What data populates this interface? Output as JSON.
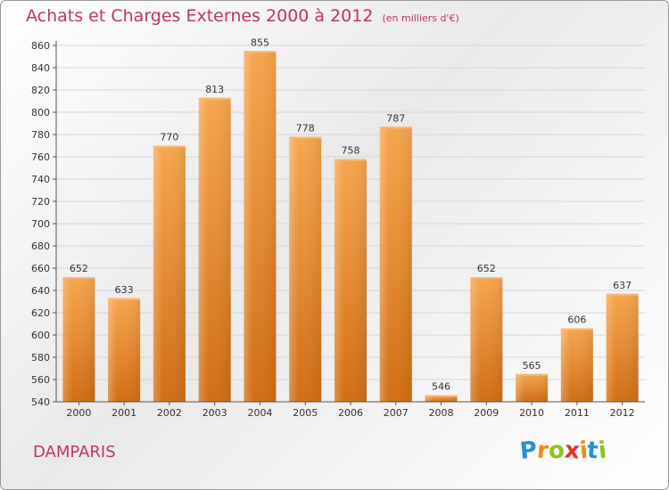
{
  "chart_data": {
    "type": "bar",
    "title": "Achats et Charges Externes 2000 à 2012",
    "subtitle": "(en milliers d'€)",
    "categories": [
      "2000",
      "2001",
      "2002",
      "2003",
      "2004",
      "2005",
      "2006",
      "2007",
      "2008",
      "2009",
      "2010",
      "2011",
      "2012"
    ],
    "values": [
      652,
      633,
      770,
      813,
      855,
      778,
      758,
      787,
      546,
      652,
      565,
      606,
      637
    ],
    "ylim": [
      540,
      860
    ],
    "yticks": [
      540,
      560,
      580,
      600,
      620,
      640,
      660,
      680,
      700,
      720,
      740,
      760,
      780,
      800,
      820,
      840,
      860
    ],
    "grid": true,
    "bar_color": "#f0902e"
  },
  "footer": {
    "town": "DAMPARIS",
    "logo": [
      "P",
      "r",
      "o",
      "x",
      "i",
      "t",
      "i"
    ],
    "logo_colors": [
      "#2a8fd6",
      "#f08a1c",
      "#8fc21e",
      "#e8322e",
      "#f08a1c",
      "#2a8fd6",
      "#8fc21e"
    ]
  }
}
